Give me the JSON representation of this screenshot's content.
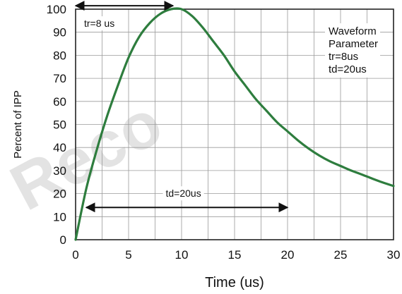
{
  "chart_data": {
    "type": "line",
    "xlabel": "Time (us)",
    "ylabel": "Percent of IPP",
    "xlim": [
      0,
      30
    ],
    "ylim": [
      0,
      100
    ],
    "x_ticks": [
      "0",
      "5",
      "10",
      "15",
      "20",
      "25",
      "30"
    ],
    "y_ticks": [
      "0",
      "10",
      "20",
      "30",
      "40",
      "50",
      "60",
      "70",
      "80",
      "90",
      "100"
    ],
    "grid": true,
    "series": [
      {
        "color": "#2e7d3e",
        "x": [
          0,
          1,
          2,
          3,
          4,
          5,
          6,
          7,
          8,
          9,
          10,
          11,
          12,
          13,
          14,
          15,
          16,
          17,
          18,
          19,
          20,
          21,
          22,
          23,
          24,
          25,
          26,
          27,
          28,
          29,
          30
        ],
        "y": [
          0,
          22,
          39,
          54,
          67,
          79,
          88,
          94,
          98,
          100,
          100,
          97,
          92,
          86,
          80,
          73,
          67,
          61,
          56,
          51,
          47,
          43,
          39.5,
          36.5,
          34,
          32,
          30,
          28.3,
          26.5,
          24.8,
          23.3
        ]
      }
    ],
    "annotations": {
      "tr": {
        "label": "tr=8 us",
        "from": 0,
        "to": 9.2,
        "y": 101.5
      },
      "td": {
        "label": "td=20us",
        "from": 1,
        "to": 20,
        "y": 14
      }
    },
    "legend": {
      "lines": [
        "Waveform",
        "Parameter",
        "tr=8us",
        "td=20us"
      ],
      "placement": "top-right"
    }
  },
  "watermark": "Reco"
}
